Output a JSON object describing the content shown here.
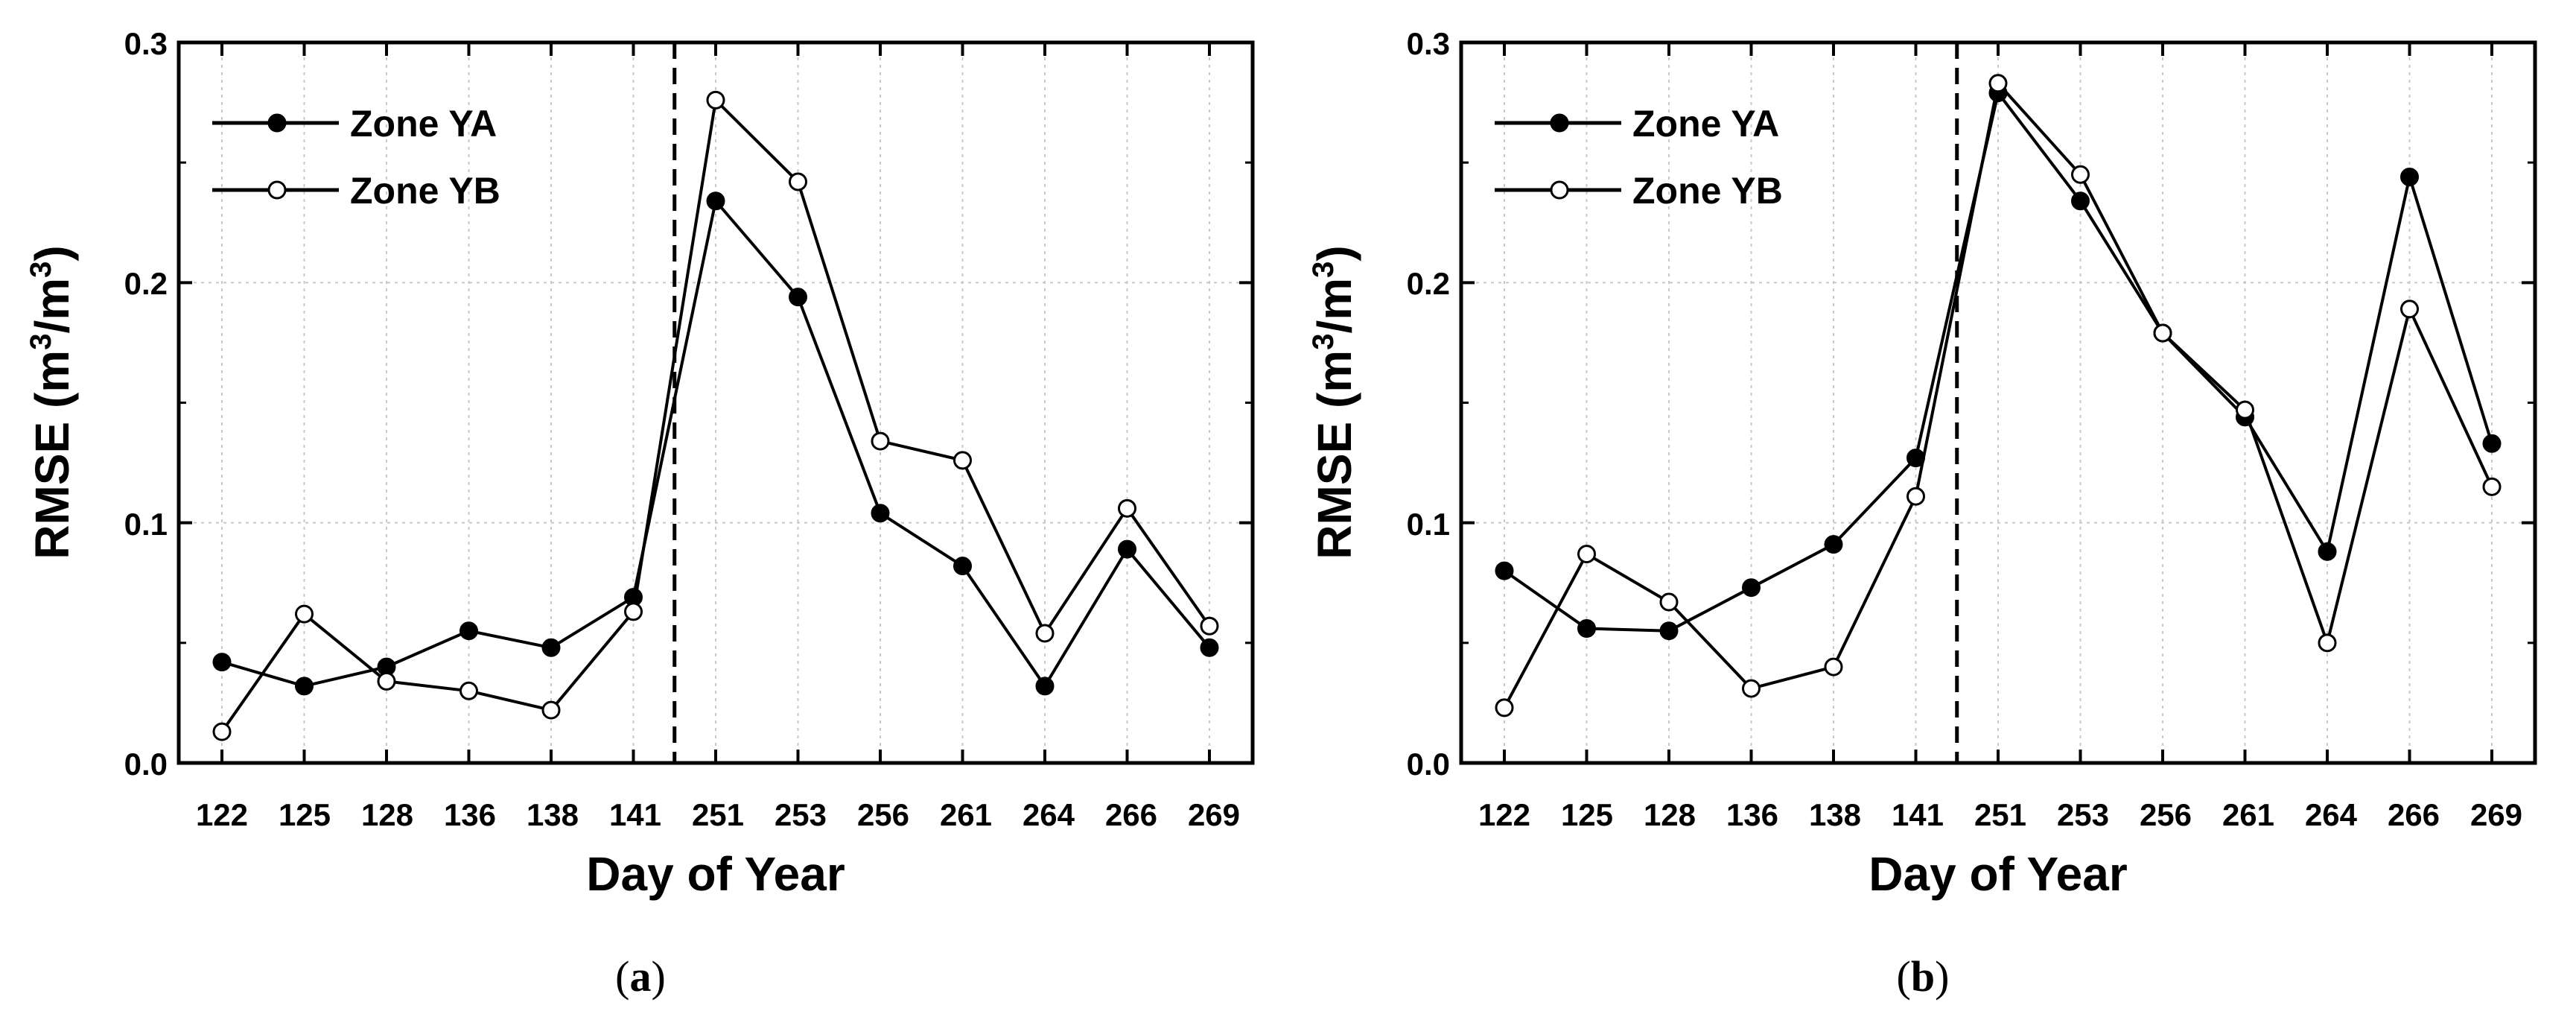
{
  "chart_data": [
    {
      "type": "line",
      "panel_label": "a",
      "categories": [
        "122",
        "125",
        "128",
        "136",
        "138",
        "141",
        "251",
        "253",
        "256",
        "261",
        "264",
        "266",
        "269"
      ],
      "series": [
        {
          "name": "Zone YA",
          "marker": "filled-circle",
          "values": [
            0.042,
            0.032,
            0.04,
            0.055,
            0.048,
            0.069,
            0.234,
            0.194,
            0.104,
            0.082,
            0.032,
            0.089,
            0.048
          ]
        },
        {
          "name": "Zone YB",
          "marker": "open-circle",
          "values": [
            0.013,
            0.062,
            0.034,
            0.03,
            0.022,
            0.063,
            0.276,
            0.242,
            0.134,
            0.126,
            0.054,
            0.106,
            0.057
          ]
        }
      ],
      "xlabel": "Day of Year",
      "ylabel_main": "RMSE (m",
      "ylabel_sup1": "3",
      "ylabel_mid": "/m",
      "ylabel_sup2": "3",
      "ylabel_end": ")",
      "ylim": [
        0,
        0.3
      ],
      "yticks": [
        "0.0",
        "0.1",
        "0.2",
        "0.3"
      ],
      "divider_after_index": 5,
      "legend_position": "top-left",
      "grid": true
    },
    {
      "type": "line",
      "panel_label": "b",
      "categories": [
        "122",
        "125",
        "128",
        "136",
        "138",
        "141",
        "251",
        "253",
        "256",
        "261",
        "264",
        "266",
        "269"
      ],
      "series": [
        {
          "name": "Zone YA",
          "marker": "filled-circle",
          "values": [
            0.08,
            0.056,
            0.055,
            0.073,
            0.091,
            0.127,
            0.279,
            0.234,
            0.179,
            0.144,
            0.088,
            0.244,
            0.133
          ]
        },
        {
          "name": "Zone YB",
          "marker": "open-circle",
          "values": [
            0.023,
            0.087,
            0.067,
            0.031,
            0.04,
            0.111,
            0.283,
            0.245,
            0.179,
            0.147,
            0.05,
            0.189,
            0.115
          ]
        }
      ],
      "xlabel": "Day of Year",
      "ylabel_main": "RMSE (m",
      "ylabel_sup1": "3",
      "ylabel_mid": "/m",
      "ylabel_sup2": "3",
      "ylabel_end": ")",
      "ylim": [
        0,
        0.3
      ],
      "yticks": [
        "0.0",
        "0.1",
        "0.2",
        "0.3"
      ],
      "divider_after_index": 5,
      "legend_position": "top-left",
      "grid": true
    }
  ],
  "colors": {
    "line": "#000000",
    "grid": "#c8c8c8",
    "background": "#ffffff"
  }
}
